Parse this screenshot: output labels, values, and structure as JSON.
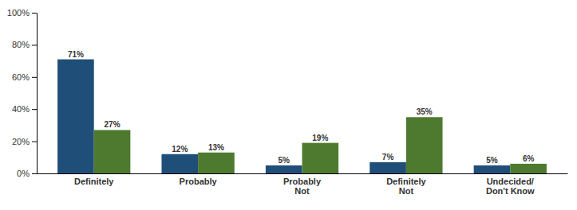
{
  "chart_data": {
    "type": "bar",
    "categories": [
      "Definitely",
      "Probably",
      "Probably\nNot",
      "Definitely\nNot",
      "Undecided/\nDon't Know"
    ],
    "series": [
      {
        "color": "#1F4E79",
        "values": [
          71,
          12,
          5,
          7,
          5
        ],
        "value_labels": [
          "71%",
          "12%",
          "5%",
          "7%",
          "5%"
        ]
      },
      {
        "color": "#4E7A2F",
        "values": [
          27,
          13,
          19,
          35,
          6
        ],
        "value_labels": [
          "27%",
          "13%",
          "19%",
          "35%",
          "6%"
        ]
      }
    ],
    "ylim": [
      0,
      100
    ],
    "yticks": [
      {
        "value": 0,
        "label": "0%"
      },
      {
        "value": 20,
        "label": "20%"
      },
      {
        "value": 40,
        "label": "40%"
      },
      {
        "value": 60,
        "label": "60%"
      },
      {
        "value": 80,
        "label": "80%"
      },
      {
        "value": 100,
        "label": "100%"
      }
    ],
    "data_labels": true,
    "grid": false
  }
}
